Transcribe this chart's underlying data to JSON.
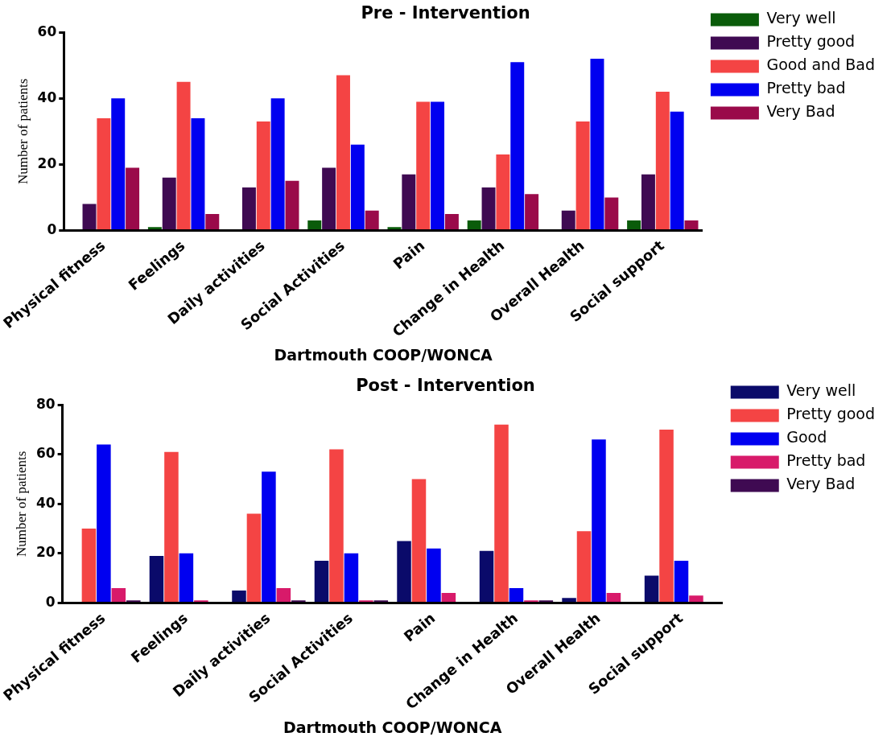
{
  "chart_data": [
    {
      "type": "bar",
      "title": "Pre - Intervention",
      "xlabel": "Dartmouth COOP/WONCA",
      "ylabel": "Number of patients",
      "categories": [
        "Physical fitness",
        "Feelings",
        "Daily activities",
        "Social Activities",
        "Pain",
        "Change in Health",
        "Overall Health",
        "Social support"
      ],
      "ylim": [
        0,
        60
      ],
      "yticks": [
        0,
        20,
        40,
        60
      ],
      "grid": false,
      "legend": "top right",
      "series": [
        {
          "name": "Very well",
          "color": "#0a5c0a",
          "values": [
            0,
            1,
            0,
            3,
            1,
            3,
            0,
            3
          ]
        },
        {
          "name": "Pretty good",
          "color": "#3f0a52",
          "values": [
            8,
            16,
            13,
            19,
            17,
            13,
            6,
            17
          ]
        },
        {
          "name": "Good and Bad",
          "color": "#f44444",
          "values": [
            34,
            45,
            33,
            47,
            39,
            23,
            33,
            42
          ]
        },
        {
          "name": "Pretty bad",
          "color": "#0000f0",
          "values": [
            40,
            34,
            40,
            26,
            39,
            51,
            52,
            36
          ]
        },
        {
          "name": "Very Bad",
          "color": "#9a0a4a",
          "values": [
            19,
            5,
            15,
            6,
            5,
            11,
            10,
            3
          ]
        }
      ]
    },
    {
      "type": "bar",
      "title": "Post - Intervention",
      "xlabel": "Dartmouth COOP/WONCA",
      "ylabel": "Number of patients",
      "categories": [
        "Physical fitness",
        "Feelings",
        "Daily activities",
        "Social Activities",
        "Pain",
        "Change in Health",
        "Overall Health",
        "Social support"
      ],
      "ylim": [
        0,
        80
      ],
      "yticks": [
        0,
        20,
        40,
        60,
        80
      ],
      "grid": false,
      "legend": "top right",
      "series": [
        {
          "name": "Very well",
          "color": "#0a0a6a",
          "values": [
            0,
            19,
            5,
            17,
            25,
            21,
            2,
            11
          ]
        },
        {
          "name": "Pretty good",
          "color": "#f44444",
          "values": [
            30,
            61,
            36,
            62,
            50,
            72,
            29,
            70
          ]
        },
        {
          "name": "Good",
          "color": "#0000f0",
          "values": [
            64,
            20,
            53,
            20,
            22,
            6,
            66,
            17
          ]
        },
        {
          "name": "Pretty bad",
          "color": "#d81a6a",
          "values": [
            6,
            1,
            6,
            1,
            4,
            1,
            4,
            3
          ]
        },
        {
          "name": "Very Bad",
          "color": "#3f0a52",
          "values": [
            1,
            0,
            1,
            1,
            0,
            1,
            0,
            0
          ]
        }
      ]
    }
  ]
}
